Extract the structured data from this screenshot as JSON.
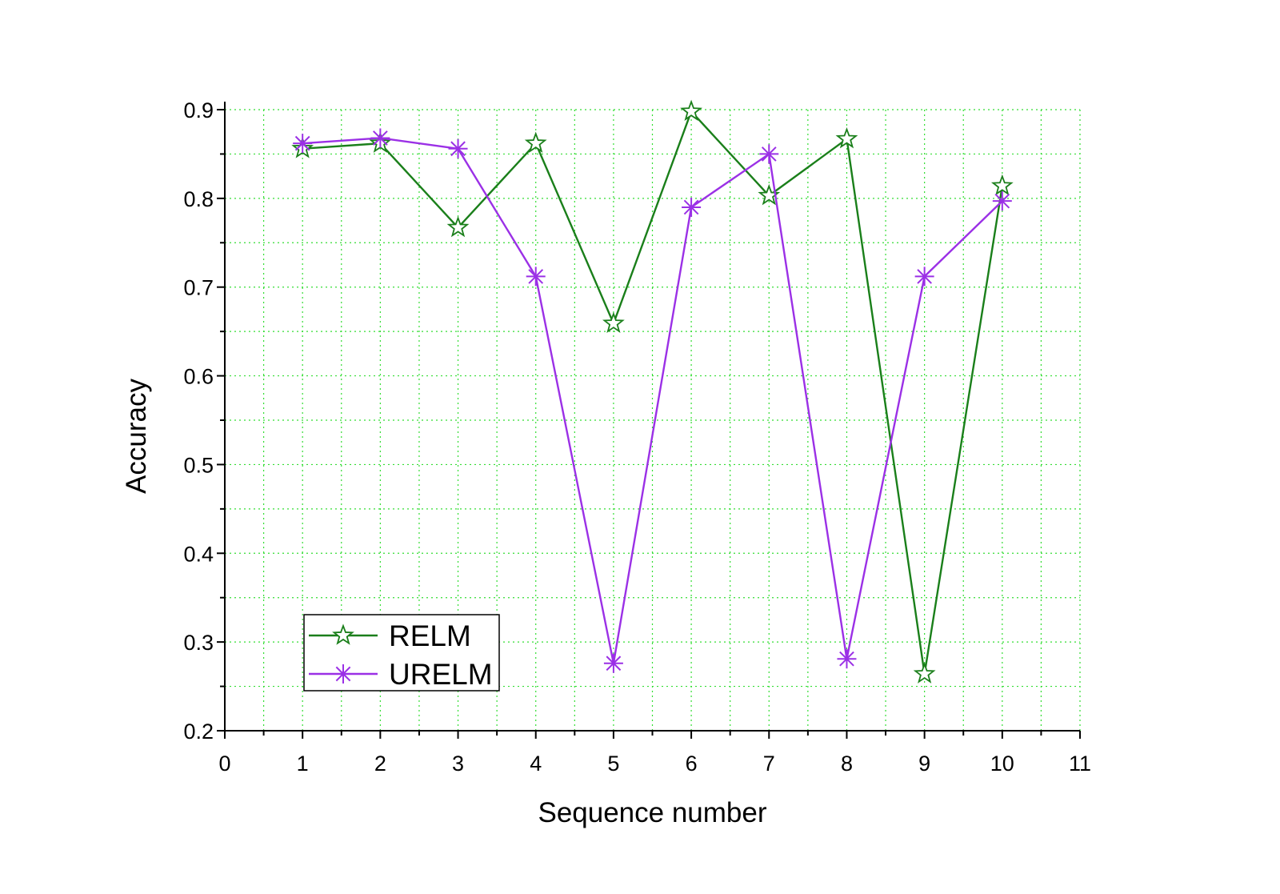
{
  "chart_data": {
    "type": "line",
    "title": "",
    "xlabel": "Sequence number",
    "ylabel": "Accuracy",
    "xlim": [
      0,
      11
    ],
    "ylim": [
      0.2,
      0.9
    ],
    "xticks": [
      "0",
      "1",
      "2",
      "3",
      "4",
      "5",
      "6",
      "7",
      "8",
      "9",
      "10",
      "11"
    ],
    "yticks": [
      "0.2",
      "0.3",
      "0.4",
      "0.5",
      "0.6",
      "0.7",
      "0.8",
      "0.9"
    ],
    "grid": true,
    "legend_position": "bottom-left",
    "x": [
      1,
      2,
      3,
      4,
      5,
      6,
      7,
      8,
      9,
      10
    ],
    "series": [
      {
        "name": "RELM",
        "color": "#1a7f1a",
        "marker": "star",
        "values": [
          0.856,
          0.862,
          0.767,
          0.862,
          0.659,
          0.898,
          0.803,
          0.867,
          0.264,
          0.814
        ]
      },
      {
        "name": "URELM",
        "color": "#9b30e6",
        "marker": "asterisk",
        "values": [
          0.862,
          0.868,
          0.856,
          0.712,
          0.276,
          0.79,
          0.85,
          0.281,
          0.712,
          0.797
        ]
      }
    ]
  }
}
